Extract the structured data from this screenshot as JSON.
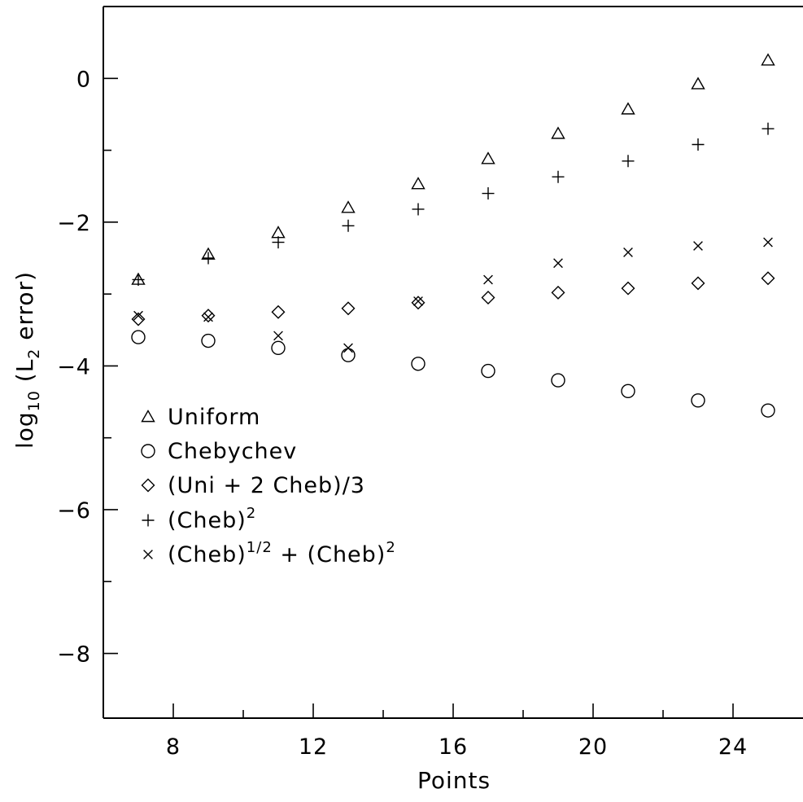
{
  "chart_data": {
    "type": "scatter",
    "title": "",
    "xlabel": "Points",
    "ylabel": {
      "prefix": "log",
      "prefix_sub": "10",
      "open": " (L",
      "sub": "2",
      "rest": " error)"
    },
    "xlim": [
      6,
      26
    ],
    "ylim": [
      -8.9,
      1.0
    ],
    "xticks": [
      8,
      12,
      16,
      20,
      24
    ],
    "xtick_labels": [
      "8",
      "12",
      "16",
      "20",
      "24"
    ],
    "x_minor_step": 2,
    "yticks": [
      0,
      -2,
      -4,
      -6,
      -8
    ],
    "ytick_labels": [
      "0",
      "−2",
      "−4",
      "−6",
      "−8"
    ],
    "y_minor_step": 1,
    "grid": false,
    "legend_position": "left",
    "x": [
      7,
      9,
      11,
      13,
      15,
      17,
      19,
      21,
      23,
      25
    ],
    "series": [
      {
        "id": "uniform",
        "marker": "triangle",
        "legend": [
          {
            "t": "Uniform"
          }
        ],
        "values": [
          -2.8,
          -2.45,
          -2.15,
          -1.8,
          -1.47,
          -1.12,
          -0.77,
          -0.43,
          -0.08,
          0.25
        ]
      },
      {
        "id": "chebychev",
        "marker": "circle",
        "legend": [
          {
            "t": "Chebychev"
          }
        ],
        "values": [
          -3.6,
          -3.65,
          -3.75,
          -3.85,
          -3.97,
          -4.07,
          -4.2,
          -4.35,
          -4.48,
          -4.62
        ]
      },
      {
        "id": "uni-2cheb",
        "marker": "diamond",
        "legend": [
          {
            "t": "(Uni + 2 Cheb)/3"
          }
        ],
        "values": [
          -3.35,
          -3.3,
          -3.25,
          -3.2,
          -3.12,
          -3.05,
          -2.98,
          -2.92,
          -2.85,
          -2.78
        ]
      },
      {
        "id": "cheb-squared",
        "marker": "plus",
        "legend": [
          {
            "t": "(Cheb)"
          },
          {
            "t": "2",
            "sup": true
          }
        ],
        "values": [
          -2.8,
          -2.5,
          -2.28,
          -2.05,
          -1.82,
          -1.6,
          -1.37,
          -1.15,
          -0.92,
          -0.7
        ]
      },
      {
        "id": "cheb-half-plus-squared",
        "marker": "cross",
        "legend": [
          {
            "t": "(Cheb)"
          },
          {
            "t": "1/2",
            "sup": true
          },
          {
            "t": " + (Cheb)"
          },
          {
            "t": "2",
            "sup": true
          }
        ],
        "values": [
          -3.3,
          -3.32,
          -3.58,
          -3.75,
          -3.1,
          -2.8,
          -2.57,
          -2.42,
          -2.33,
          -2.28
        ]
      }
    ]
  }
}
